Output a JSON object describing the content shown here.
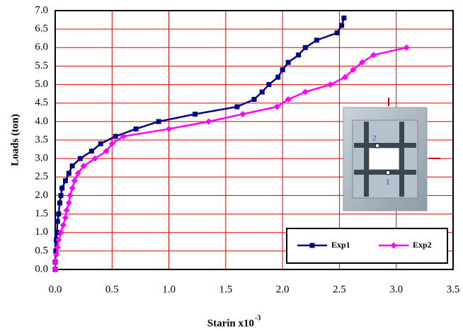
{
  "chart_data": {
    "type": "line",
    "x_label": "Starin x10",
    "x_label_exponent": "-3",
    "y_label": "Loads (ton)",
    "xlim": [
      0,
      3.5
    ],
    "ylim": [
      0,
      7
    ],
    "xticks": [
      {
        "value": 0,
        "label": "0.0"
      },
      0.5,
      {
        "value": 1,
        "label": "1.0"
      },
      1.5,
      {
        "value": 2,
        "label": "2.0"
      },
      2.5,
      {
        "value": 3,
        "label": "3.0"
      },
      3.5
    ],
    "yticks": [
      {
        "value": 0,
        "label": "0.0"
      },
      0.5,
      {
        "value": 1,
        "label": "1.0"
      },
      1.5,
      {
        "value": 2,
        "label": "2.0"
      },
      2.5,
      {
        "value": 3,
        "label": "3.0"
      },
      3.5,
      {
        "value": 4,
        "label": "4.0"
      },
      4.5,
      {
        "value": 5,
        "label": "5.0"
      },
      5.5,
      {
        "value": 6,
        "label": "6.0"
      },
      6.5,
      {
        "value": 7,
        "label": "7.0"
      }
    ],
    "grid": true,
    "grid_color": "#e00000",
    "legend": "lower right",
    "inset_labels": [
      "2",
      "1"
    ],
    "series": [
      {
        "name": "Exp1",
        "color": "#000080",
        "marker": "square",
        "x": [
          0,
          0,
          0.005,
          0.01,
          0.015,
          0.02,
          0.03,
          0.04,
          0.05,
          0.06,
          0.09,
          0.12,
          0.15,
          0.22,
          0.32,
          0.4,
          0.53,
          0.71,
          0.91,
          1.23,
          1.6,
          1.75,
          1.82,
          1.88,
          1.96,
          2.0,
          2.05,
          2.14,
          2.2,
          2.3,
          2.48,
          2.52,
          2.54
        ],
        "values": [
          0,
          0.2,
          0.5,
          0.8,
          1.0,
          1.3,
          1.5,
          1.8,
          2.0,
          2.2,
          2.4,
          2.6,
          2.8,
          3.0,
          3.2,
          3.4,
          3.6,
          3.8,
          4.0,
          4.2,
          4.4,
          4.6,
          4.8,
          5.0,
          5.2,
          5.4,
          5.6,
          5.8,
          6.0,
          6.2,
          6.4,
          6.6,
          6.8
        ]
      },
      {
        "name": "Exp2",
        "color": "#ff00ff",
        "marker": "diamond",
        "x": [
          0,
          0,
          0.01,
          0.02,
          0.03,
          0.05,
          0.07,
          0.09,
          0.1,
          0.12,
          0.13,
          0.15,
          0.17,
          0.2,
          0.25,
          0.35,
          0.45,
          0.5,
          0.6,
          1.0,
          1.35,
          1.65,
          1.95,
          2.05,
          2.2,
          2.42,
          2.55,
          2.62,
          2.7,
          2.8,
          3.09
        ],
        "values": [
          0,
          0.2,
          0.4,
          0.6,
          0.8,
          1.0,
          1.2,
          1.4,
          1.6,
          1.8,
          2.0,
          2.2,
          2.4,
          2.6,
          2.8,
          3.0,
          3.2,
          3.4,
          3.6,
          3.8,
          4.0,
          4.2,
          4.4,
          4.6,
          4.8,
          5.0,
          5.2,
          5.4,
          5.6,
          5.8,
          6.0
        ]
      }
    ]
  }
}
